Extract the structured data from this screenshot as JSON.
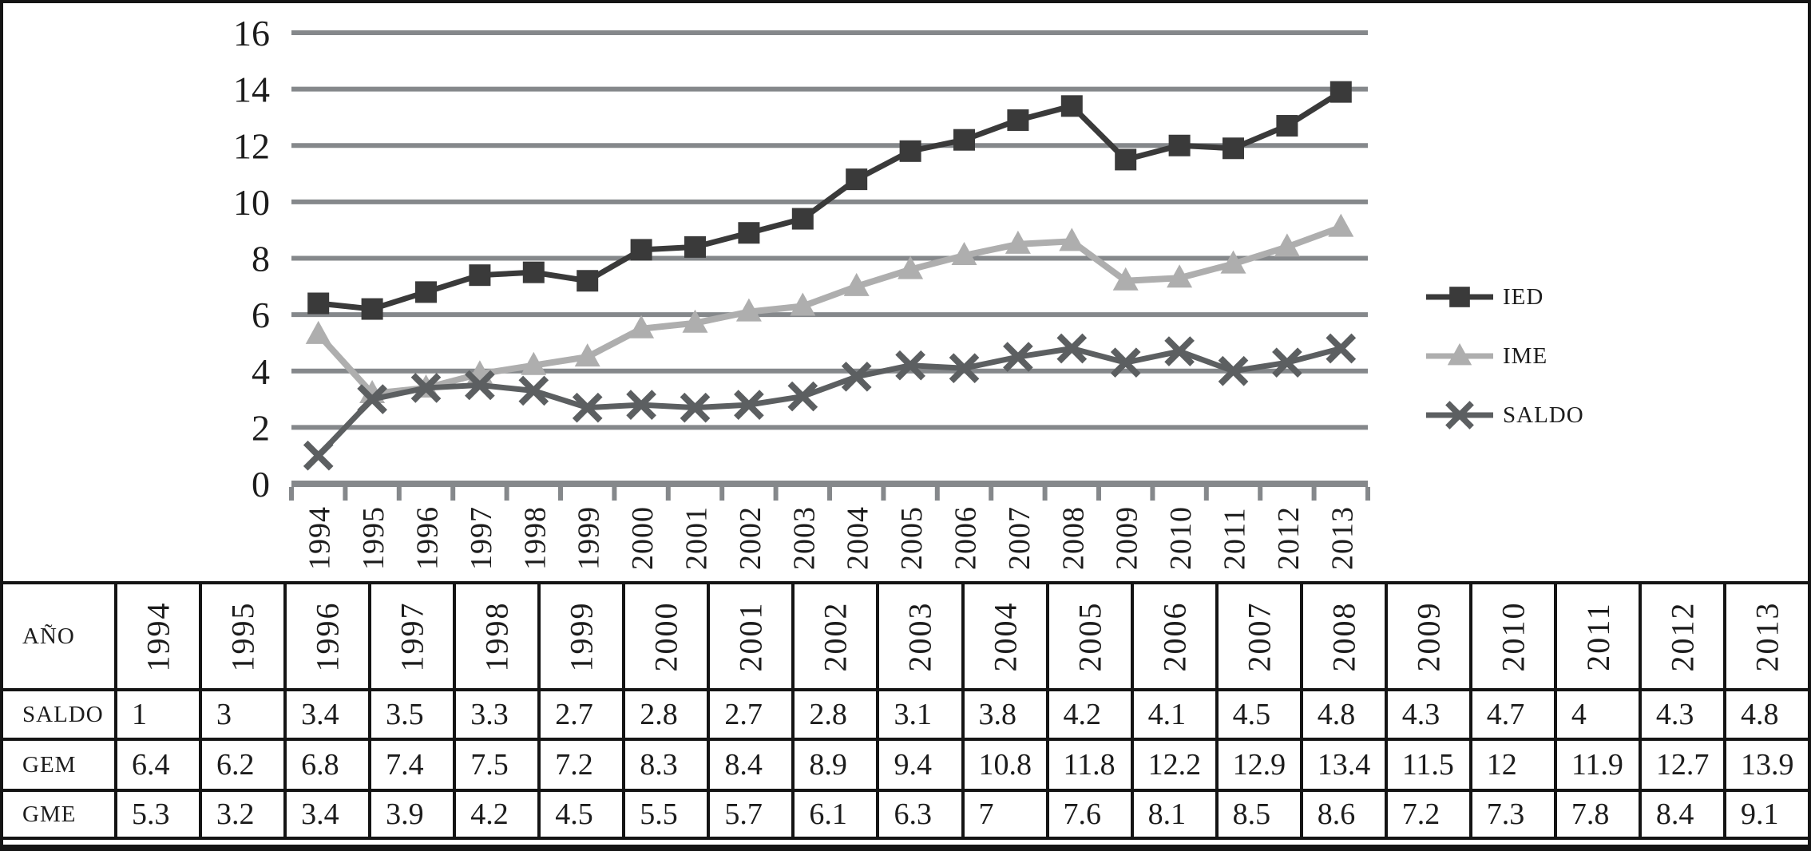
{
  "chart_data": {
    "type": "line",
    "title": "",
    "xlabel": "",
    "ylabel": "",
    "x": [
      "1994",
      "1995",
      "1996",
      "1997",
      "1998",
      "1999",
      "2000",
      "2001",
      "2002",
      "2003",
      "2004",
      "2005",
      "2006",
      "2007",
      "2008",
      "2009",
      "2010",
      "2011",
      "2012",
      "2013"
    ],
    "yticks": [
      0,
      2,
      4,
      6,
      8,
      10,
      12,
      14,
      16
    ],
    "ylim": [
      0,
      16
    ],
    "grid": "horizontal",
    "legend_position": "right",
    "series": [
      {
        "name": "IED",
        "marker": "square",
        "color": "#3a3a3a",
        "values": [
          6.4,
          6.2,
          6.8,
          7.4,
          7.5,
          7.2,
          8.3,
          8.4,
          8.9,
          9.4,
          10.8,
          11.8,
          12.2,
          12.9,
          13.4,
          11.5,
          12,
          11.9,
          12.7,
          13.9
        ]
      },
      {
        "name": "IME",
        "marker": "triangle",
        "color": "#aeaeae",
        "values": [
          5.3,
          3.2,
          3.4,
          3.9,
          4.2,
          4.5,
          5.5,
          5.7,
          6.1,
          6.3,
          7,
          7.6,
          8.1,
          8.5,
          8.6,
          7.2,
          7.3,
          7.8,
          8.4,
          9.1
        ]
      },
      {
        "name": "SALDO",
        "marker": "x",
        "color": "#5c5f61",
        "values": [
          1,
          3,
          3.4,
          3.5,
          3.3,
          2.7,
          2.8,
          2.7,
          2.8,
          3.1,
          3.8,
          4.2,
          4.1,
          4.5,
          4.8,
          4.3,
          4.7,
          4,
          4.3,
          4.8
        ]
      }
    ],
    "colors": {
      "grid": "#85888b",
      "axis": "#85888b",
      "text": "#1c1c1c"
    }
  },
  "table": {
    "header_label": "AÑO",
    "years": [
      "1994",
      "1995",
      "1996",
      "1997",
      "1998",
      "1999",
      "2000",
      "2001",
      "2002",
      "2003",
      "2004",
      "2005",
      "2006",
      "2007",
      "2008",
      "2009",
      "2010",
      "2011",
      "2012",
      "2013"
    ],
    "rows": [
      {
        "label": "SALDO",
        "values": [
          "1",
          "3",
          "3.4",
          "3.5",
          "3.3",
          "2.7",
          "2.8",
          "2.7",
          "2.8",
          "3.1",
          "3.8",
          "4.2",
          "4.1",
          "4.5",
          "4.8",
          "4.3",
          "4.7",
          "4",
          "4.3",
          "4.8"
        ]
      },
      {
        "label": "GEM",
        "values": [
          "6.4",
          "6.2",
          "6.8",
          "7.4",
          "7.5",
          "7.2",
          "8.3",
          "8.4",
          "8.9",
          "9.4",
          "10.8",
          "11.8",
          "12.2",
          "12.9",
          "13.4",
          "11.5",
          "12",
          "11.9",
          "12.7",
          "13.9"
        ]
      },
      {
        "label": "GME",
        "values": [
          "5.3",
          "3.2",
          "3.4",
          "3.9",
          "4.2",
          "4.5",
          "5.5",
          "5.7",
          "6.1",
          "6.3",
          "7",
          "7.6",
          "8.1",
          "8.5",
          "8.6",
          "7.2",
          "7.3",
          "7.8",
          "8.4",
          "9.1"
        ]
      }
    ]
  }
}
